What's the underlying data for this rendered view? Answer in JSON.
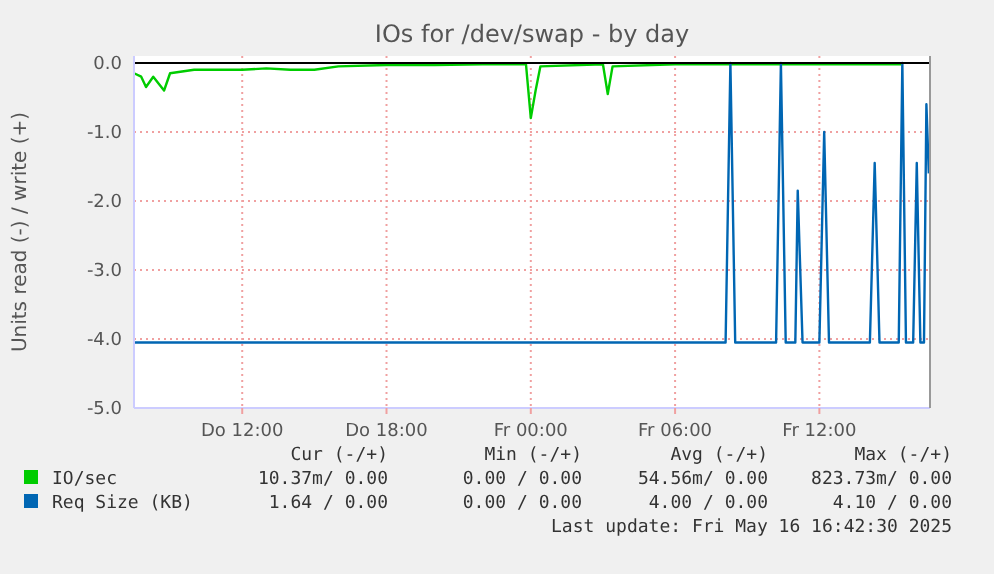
{
  "chart_data": {
    "type": "line",
    "title": "IOs for /dev/swap - by day",
    "ylabel": "Units read (-) / write (+)",
    "xlim": [
      "2025-05-15T07:30",
      "2025-05-16T16:36"
    ],
    "xticks": [
      {
        "value": "2025-05-15T12:00",
        "label": "Do 12:00"
      },
      {
        "value": "2025-05-15T18:00",
        "label": "Do 18:00"
      },
      {
        "value": "2025-05-16T00:00",
        "label": "Fr 00:00"
      },
      {
        "value": "2025-05-16T06:00",
        "label": "Fr 06:00"
      },
      {
        "value": "2025-05-16T12:00",
        "label": "Fr 12:00"
      }
    ],
    "ylim": [
      -5,
      0.1
    ],
    "yticks": [
      {
        "value": 0,
        "label": "0.0"
      },
      {
        "value": -1,
        "label": "-1.0"
      },
      {
        "value": -2,
        "label": "-2.0"
      },
      {
        "value": -3,
        "label": "-3.0"
      },
      {
        "value": -4,
        "label": "-4.0"
      },
      {
        "value": -5,
        "label": "-5.0"
      }
    ],
    "grid": true,
    "legend": "bottom",
    "ref_lines": [
      {
        "axis": "y",
        "value": 0,
        "color": "#000000"
      }
    ],
    "series": [
      {
        "name": "IO/sec",
        "color": "#00cc00",
        "x": [
          "2025-05-15T07:30",
          "2025-05-15T07:48",
          "2025-05-15T08:00",
          "2025-05-15T08:18",
          "2025-05-15T08:45",
          "2025-05-15T09:00",
          "2025-05-15T10:00",
          "2025-05-15T11:00",
          "2025-05-15T12:00",
          "2025-05-15T13:00",
          "2025-05-15T14:00",
          "2025-05-15T15:00",
          "2025-05-15T16:00",
          "2025-05-15T18:00",
          "2025-05-15T20:00",
          "2025-05-15T22:00",
          "2025-05-15T23:48",
          "2025-05-16T00:00",
          "2025-05-16T00:12",
          "2025-05-16T00:24",
          "2025-05-16T03:00",
          "2025-05-16T03:12",
          "2025-05-16T03:24",
          "2025-05-16T06:00",
          "2025-05-16T10:00",
          "2025-05-16T13:00",
          "2025-05-16T15:24"
        ],
        "values": [
          -0.15,
          -0.2,
          -0.35,
          -0.2,
          -0.4,
          -0.15,
          -0.1,
          -0.1,
          -0.1,
          -0.08,
          -0.1,
          -0.1,
          -0.05,
          -0.03,
          -0.03,
          -0.02,
          -0.02,
          -0.8,
          -0.4,
          -0.05,
          -0.02,
          -0.45,
          -0.05,
          -0.02,
          -0.02,
          -0.02,
          -0.02
        ]
      },
      {
        "name": "Req Size (KB)",
        "color": "#0066b3",
        "x": [
          "2025-05-15T07:30",
          "2025-05-16T08:06",
          "2025-05-16T08:18",
          "2025-05-16T08:30",
          "2025-05-16T10:12",
          "2025-05-16T10:24",
          "2025-05-16T10:36",
          "2025-05-16T11:00",
          "2025-05-16T11:06",
          "2025-05-16T11:18",
          "2025-05-16T12:00",
          "2025-05-16T12:12",
          "2025-05-16T12:24",
          "2025-05-16T14:06",
          "2025-05-16T14:18",
          "2025-05-16T14:30",
          "2025-05-16T15:18",
          "2025-05-16T15:27",
          "2025-05-16T15:36",
          "2025-05-16T15:54",
          "2025-05-16T16:03",
          "2025-05-16T16:12",
          "2025-05-16T16:21",
          "2025-05-16T16:27",
          "2025-05-16T16:33"
        ],
        "values": [
          -4.05,
          -4.05,
          0,
          -4.05,
          -4.05,
          0,
          -4.05,
          -4.05,
          -1.85,
          -4.05,
          -4.05,
          -1.0,
          -4.05,
          -4.05,
          -1.45,
          -4.05,
          -4.05,
          0,
          -4.05,
          -4.05,
          -1.45,
          -4.05,
          -4.05,
          -0.6,
          -1.6
        ]
      }
    ],
    "annotations": [
      "Cur (-/+)",
      "Min (-/+)",
      "Avg (-/+)",
      "Max (-/+)",
      "10.37m/ 0.00",
      "0.00 / 0.00",
      "54.56m/ 0.00",
      "823.73m/ 0.00",
      "1.64 / 0.00",
      "0.00 / 0.00",
      "4.00 / 0.00",
      "4.10 / 0.00",
      "Last update: Fri May 16 16:42:30 2025"
    ]
  }
}
